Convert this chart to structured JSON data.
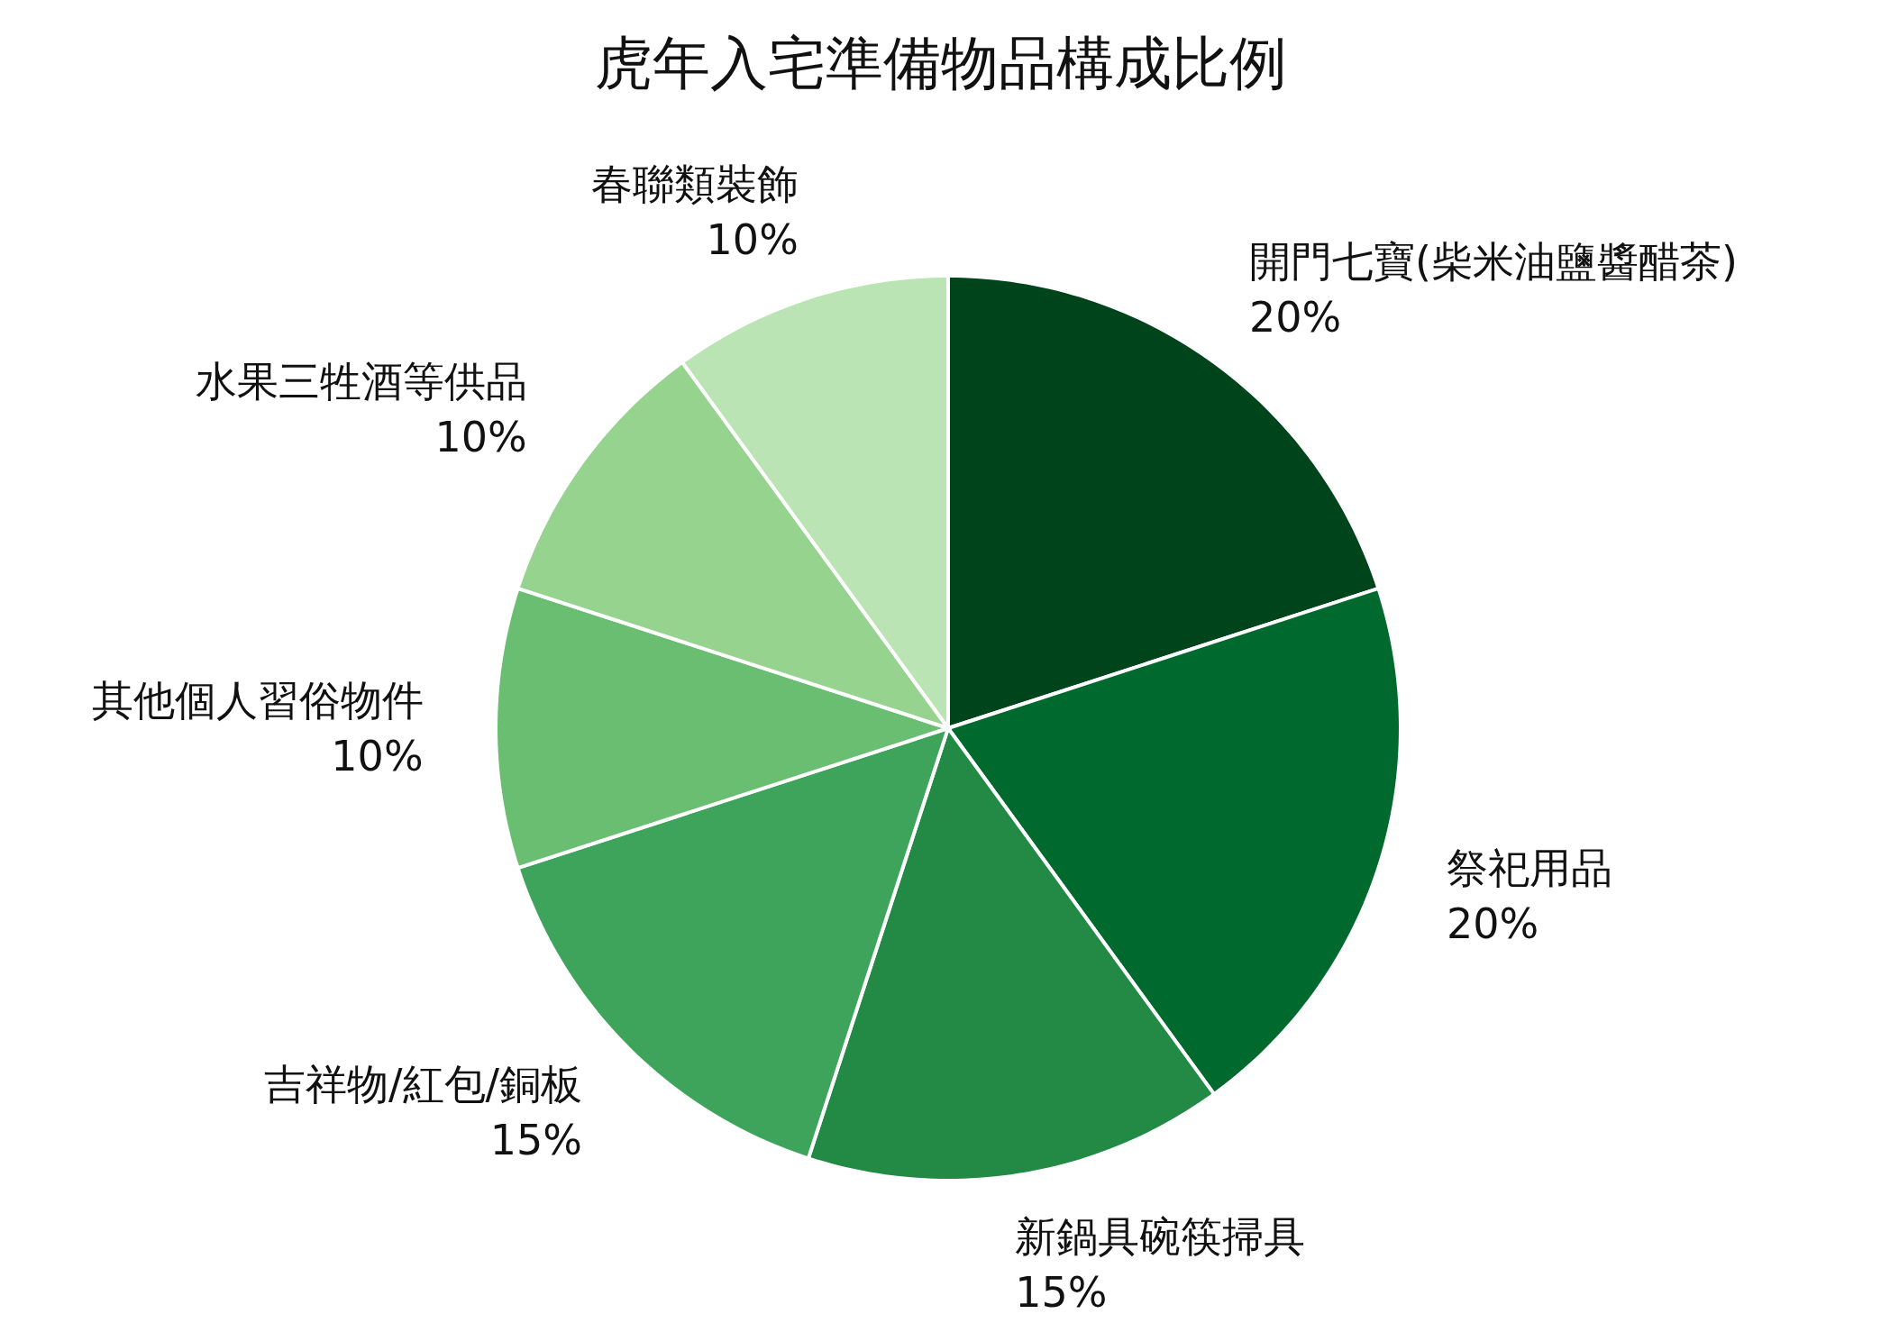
{
  "chart_data": {
    "type": "pie",
    "title": "虎年入宅準備物品構成比例",
    "categories": [
      "開門七寶(柴米油鹽醬醋茶)",
      "祭祀用品",
      "新鍋具碗筷掃具",
      "吉祥物/紅包/銅板",
      "其他個人習俗物件",
      "水果三牲酒等供品",
      "春聯類裝飾"
    ],
    "values": [
      20,
      20,
      15,
      15,
      10,
      10,
      10
    ],
    "value_labels": [
      "20%",
      "20%",
      "15%",
      "15%",
      "10%",
      "10%",
      "10%"
    ],
    "colors": [
      "#00441b",
      "#006a2e",
      "#228a44",
      "#3fa45b",
      "#69be71",
      "#96d38f",
      "#bae4b3"
    ]
  }
}
